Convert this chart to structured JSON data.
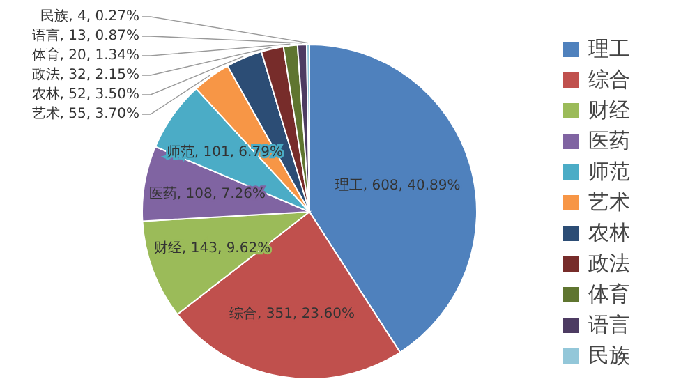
{
  "chart_data": {
    "type": "pie",
    "categories": [
      "理工",
      "综合",
      "财经",
      "医药",
      "师范",
      "艺术",
      "农林",
      "政法",
      "体育",
      "语言",
      "民族"
    ],
    "values": [
      608,
      351,
      143,
      108,
      101,
      55,
      52,
      32,
      20,
      13,
      4
    ],
    "value_labels": [
      "理工, 608, 40.89%",
      "综合, 351, 23.60%",
      "财经, 143, 9.62%",
      "医药, 108, 7.26%",
      "师范, 101, 6.79%",
      "艺术, 55, 3.70%",
      "农林, 52, 3.50%",
      "政法, 32, 2.15%",
      "体育, 20, 1.34%",
      "语言, 13, 0.87%",
      "民族, 4, 0.27%"
    ],
    "colors": [
      "#4f81bd",
      "#c0504d",
      "#9bbb59",
      "#8064a2",
      "#4bacc6",
      "#f79646",
      "#2c4d75",
      "#772c2a",
      "#5f7530",
      "#4d3b62",
      "#93c7d9"
    ],
    "legend": "right"
  }
}
